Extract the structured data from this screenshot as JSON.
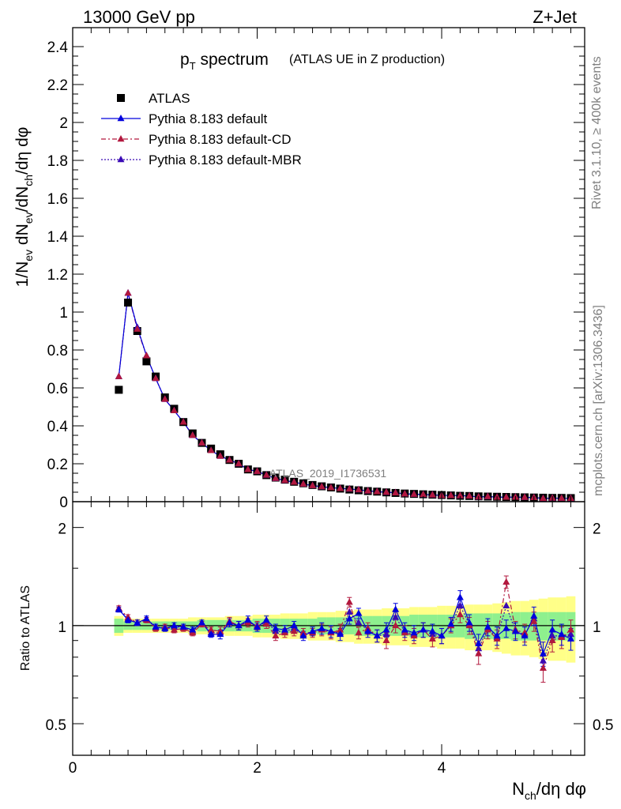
{
  "header": {
    "energy_label": "13000 GeV pp",
    "process_label": "Z+Jet"
  },
  "side_text": {
    "rivet": "Rivet 3.1.10, ≥ 400k events",
    "mcplots": "mcplots.cern.ch [arXiv:1306.3436]"
  },
  "watermark": "ATLAS_2019_I1736531",
  "chart_data": [
    {
      "type": "scatter",
      "title_main": "p",
      "title_sub": "T",
      "title_rest": " spectrum",
      "title_paren": "(ATLAS UE in Z production)",
      "ylabel": "1/N_ev dN_ev/dN_ch/dη dφ",
      "xlim": [
        0,
        5.55
      ],
      "ylim": [
        0,
        2.5
      ],
      "yticks": [
        "0",
        "0.2",
        "0.4",
        "0.6",
        "0.8",
        "1",
        "1.2",
        "1.4",
        "1.6",
        "1.8",
        "2",
        "2.2",
        "2.4"
      ],
      "grid": false,
      "legend_position": "top-left",
      "legend": [
        "ATLAS",
        "Pythia 8.183 default",
        "Pythia 8.183 default-CD",
        "Pythia 8.183 default-MBR"
      ],
      "colors": {
        "data": "#000000",
        "default": "#0000dd",
        "cd": "#b2183e",
        "mbr": "#3a0ab5"
      },
      "x": [
        0.5,
        0.6,
        0.7,
        0.8,
        0.9,
        1.0,
        1.1,
        1.2,
        1.3,
        1.4,
        1.5,
        1.6,
        1.7,
        1.8,
        1.9,
        2.0,
        2.1,
        2.2,
        2.3,
        2.4,
        2.5,
        2.6,
        2.7,
        2.8,
        2.9,
        3.0,
        3.1,
        3.2,
        3.3,
        3.4,
        3.5,
        3.6,
        3.7,
        3.8,
        3.9,
        4.0,
        4.1,
        4.2,
        4.3,
        4.4,
        4.5,
        4.6,
        4.7,
        4.8,
        4.9,
        5.0,
        5.1,
        5.2,
        5.3,
        5.4
      ],
      "series": [
        {
          "name": "ATLAS",
          "values": [
            0.59,
            1.05,
            0.9,
            0.74,
            0.66,
            0.55,
            0.49,
            0.42,
            0.36,
            0.31,
            0.28,
            0.25,
            0.22,
            0.2,
            0.17,
            0.16,
            0.14,
            0.127,
            0.116,
            0.105,
            0.097,
            0.088,
            0.081,
            0.075,
            0.069,
            0.064,
            0.06,
            0.056,
            0.053,
            0.049,
            0.046,
            0.043,
            0.041,
            0.039,
            0.037,
            0.035,
            0.033,
            0.031,
            0.03,
            0.028,
            0.027,
            0.026,
            0.025,
            0.024,
            0.023,
            0.022,
            0.021,
            0.02,
            0.02,
            0.019
          ]
        },
        {
          "name": "Pythia 8.183 default",
          "values": [
            0.66,
            1.1,
            0.92,
            0.77,
            0.65,
            0.54,
            0.48,
            0.42,
            0.35,
            0.31,
            0.27,
            0.24,
            0.22,
            0.2,
            0.17,
            0.16,
            0.14,
            0.123,
            0.112,
            0.103,
            0.093,
            0.085,
            0.079,
            0.074,
            0.07,
            0.067,
            0.063,
            0.057,
            0.053,
            0.05,
            0.047,
            0.041,
            0.039,
            0.038,
            0.036,
            0.033,
            0.033,
            0.032,
            0.03,
            0.025,
            0.027,
            0.024,
            0.024,
            0.024,
            0.023,
            0.022,
            0.017,
            0.019,
            0.018,
            0.017
          ]
        },
        {
          "name": "Pythia 8.183 default-CD",
          "values": [
            0.66,
            1.1,
            0.91,
            0.77,
            0.65,
            0.54,
            0.48,
            0.42,
            0.35,
            0.31,
            0.27,
            0.24,
            0.22,
            0.2,
            0.17,
            0.16,
            0.14,
            0.123,
            0.112,
            0.103,
            0.093,
            0.085,
            0.079,
            0.074,
            0.07,
            0.067,
            0.063,
            0.057,
            0.053,
            0.05,
            0.047,
            0.041,
            0.039,
            0.038,
            0.036,
            0.033,
            0.033,
            0.032,
            0.03,
            0.025,
            0.027,
            0.024,
            0.024,
            0.024,
            0.023,
            0.022,
            0.017,
            0.019,
            0.018,
            0.017
          ]
        },
        {
          "name": "Pythia 8.183 default-MBR",
          "values": [
            0.66,
            1.1,
            0.92,
            0.77,
            0.65,
            0.54,
            0.48,
            0.42,
            0.35,
            0.31,
            0.27,
            0.24,
            0.22,
            0.2,
            0.17,
            0.16,
            0.14,
            0.123,
            0.112,
            0.103,
            0.093,
            0.085,
            0.079,
            0.074,
            0.07,
            0.067,
            0.063,
            0.057,
            0.053,
            0.05,
            0.047,
            0.041,
            0.039,
            0.038,
            0.036,
            0.033,
            0.033,
            0.032,
            0.03,
            0.025,
            0.027,
            0.024,
            0.024,
            0.024,
            0.023,
            0.022,
            0.017,
            0.019,
            0.018,
            0.017
          ]
        }
      ]
    },
    {
      "type": "scatter",
      "ylabel": "Ratio to ATLAS",
      "xlabel": "N_ch/dη dφ",
      "xlim": [
        0,
        5.55
      ],
      "ylim": [
        0.4,
        2.4
      ],
      "yscale": "log",
      "yticks": [
        0.5,
        1,
        2
      ],
      "ytick_labels": [
        "0.5",
        "1",
        "2"
      ],
      "xticks": [
        0,
        2,
        4
      ],
      "xtick_labels": [
        "0",
        "2",
        "4"
      ],
      "reference_line": 1,
      "x": [
        0.5,
        0.6,
        0.7,
        0.8,
        0.9,
        1.0,
        1.1,
        1.2,
        1.3,
        1.4,
        1.5,
        1.6,
        1.7,
        1.8,
        1.9,
        2.0,
        2.1,
        2.2,
        2.3,
        2.4,
        2.5,
        2.6,
        2.7,
        2.8,
        2.9,
        3.0,
        3.1,
        3.2,
        3.3,
        3.4,
        3.5,
        3.6,
        3.7,
        3.8,
        3.9,
        4.0,
        4.1,
        4.2,
        4.3,
        4.4,
        4.5,
        4.6,
        4.7,
        4.8,
        4.9,
        5.0,
        5.1,
        5.2,
        5.3,
        5.4
      ],
      "band_inner": [
        0.05,
        0.03,
        0.03,
        0.03,
        0.03,
        0.03,
        0.03,
        0.03,
        0.03,
        0.04,
        0.04,
        0.04,
        0.04,
        0.04,
        0.04,
        0.05,
        0.05,
        0.05,
        0.05,
        0.05,
        0.05,
        0.05,
        0.06,
        0.06,
        0.06,
        0.06,
        0.07,
        0.07,
        0.07,
        0.07,
        0.07,
        0.07,
        0.08,
        0.08,
        0.08,
        0.08,
        0.08,
        0.08,
        0.09,
        0.09,
        0.09,
        0.09,
        0.09,
        0.1,
        0.1,
        0.1,
        0.1,
        0.1,
        0.1,
        0.1
      ],
      "band_outer": [
        0.07,
        0.05,
        0.05,
        0.05,
        0.05,
        0.05,
        0.05,
        0.05,
        0.06,
        0.06,
        0.06,
        0.06,
        0.07,
        0.07,
        0.07,
        0.08,
        0.08,
        0.08,
        0.09,
        0.09,
        0.09,
        0.1,
        0.1,
        0.1,
        0.11,
        0.11,
        0.12,
        0.12,
        0.12,
        0.13,
        0.13,
        0.13,
        0.14,
        0.14,
        0.14,
        0.15,
        0.15,
        0.15,
        0.16,
        0.16,
        0.16,
        0.17,
        0.18,
        0.19,
        0.19,
        0.2,
        0.21,
        0.22,
        0.22,
        0.23
      ],
      "series": [
        {
          "name": "Pythia 8.183 default",
          "values": [
            1.12,
            1.04,
            1.02,
            1.05,
            0.99,
            0.98,
            1.0,
            0.99,
            0.97,
            1.02,
            0.94,
            0.94,
            1.02,
            1.0,
            1.04,
            0.99,
            1.04,
            0.98,
            0.97,
            1.0,
            0.93,
            0.96,
            0.98,
            0.96,
            0.94,
            1.05,
            1.09,
            0.96,
            0.93,
            0.97,
            1.12,
            0.97,
            0.95,
            0.97,
            0.96,
            0.93,
            1.01,
            1.22,
            1.02,
            0.88,
            0.99,
            0.93,
            0.98,
            0.96,
            0.93,
            1.07,
            0.82,
            0.97,
            0.94,
            0.91
          ]
        },
        {
          "name": "Pythia 8.183 default-CD",
          "values": [
            1.13,
            1.06,
            1.02,
            1.04,
            0.98,
            0.99,
            0.97,
            0.98,
            0.95,
            1.01,
            0.97,
            0.96,
            1.03,
            1.0,
            1.02,
            1.0,
            1.01,
            0.93,
            0.95,
            0.96,
            0.95,
            0.95,
            0.97,
            0.95,
            0.97,
            1.18,
            0.95,
            0.98,
            0.93,
            0.9,
            1.0,
            0.95,
            0.93,
            0.97,
            0.91,
            0.93,
            1.0,
            1.08,
            1.0,
            0.82,
            0.97,
            0.91,
            1.36,
            0.97,
            0.95,
            1.03,
            0.74,
            0.9,
            0.92,
            0.97
          ]
        },
        {
          "name": "Pythia 8.183 default-MBR",
          "values": [
            1.12,
            1.05,
            1.02,
            1.04,
            0.99,
            0.98,
            0.99,
            0.99,
            0.96,
            1.02,
            0.95,
            0.95,
            1.02,
            1.0,
            1.03,
            0.99,
            1.03,
            0.96,
            0.96,
            0.98,
            0.94,
            0.96,
            0.97,
            0.96,
            0.95,
            1.1,
            1.02,
            0.97,
            0.93,
            0.94,
            1.06,
            0.96,
            0.94,
            0.97,
            0.94,
            0.93,
            1.0,
            1.15,
            1.01,
            0.85,
            0.98,
            0.92,
            1.15,
            0.96,
            0.94,
            1.05,
            0.78,
            0.93,
            0.93,
            0.94
          ]
        }
      ],
      "errors": [
        0.02,
        0.02,
        0.02,
        0.02,
        0.02,
        0.02,
        0.02,
        0.02,
        0.02,
        0.02,
        0.02,
        0.03,
        0.03,
        0.03,
        0.03,
        0.03,
        0.03,
        0.03,
        0.03,
        0.03,
        0.03,
        0.03,
        0.04,
        0.04,
        0.04,
        0.04,
        0.04,
        0.04,
        0.04,
        0.05,
        0.05,
        0.05,
        0.05,
        0.05,
        0.05,
        0.05,
        0.05,
        0.06,
        0.06,
        0.06,
        0.06,
        0.06,
        0.06,
        0.06,
        0.06,
        0.07,
        0.07,
        0.07,
        0.07,
        0.07
      ]
    }
  ]
}
